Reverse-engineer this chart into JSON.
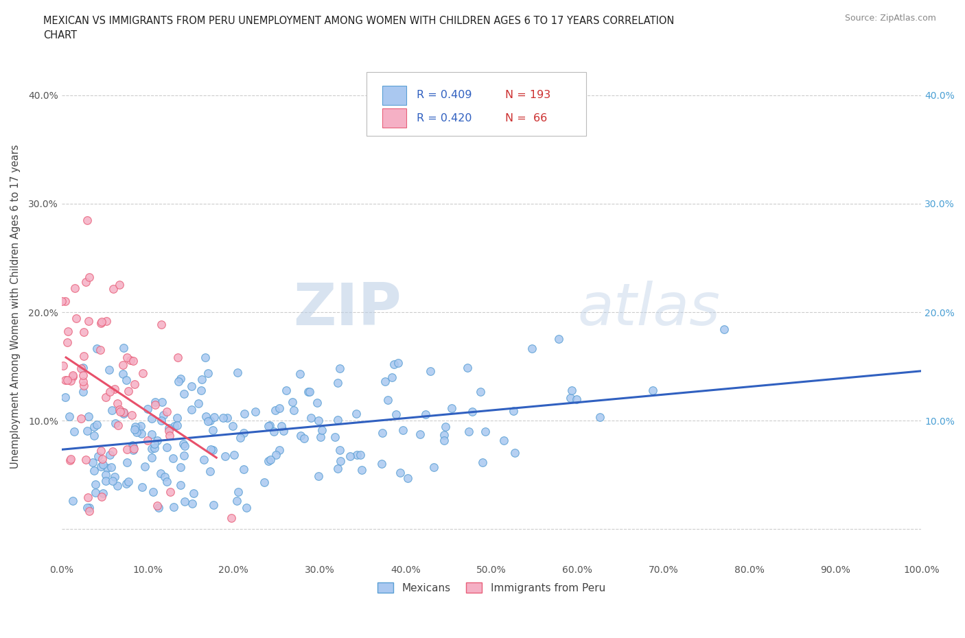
{
  "title": "MEXICAN VS IMMIGRANTS FROM PERU UNEMPLOYMENT AMONG WOMEN WITH CHILDREN AGES 6 TO 17 YEARS CORRELATION\nCHART",
  "source": "Source: ZipAtlas.com",
  "ylabel": "Unemployment Among Women with Children Ages 6 to 17 years",
  "xlim": [
    0,
    1.0
  ],
  "ylim": [
    -0.03,
    0.44
  ],
  "xticks": [
    0.0,
    0.1,
    0.2,
    0.3,
    0.4,
    0.5,
    0.6,
    0.7,
    0.8,
    0.9,
    1.0
  ],
  "xticklabels": [
    "0.0%",
    "10.0%",
    "20.0%",
    "30.0%",
    "40.0%",
    "50.0%",
    "60.0%",
    "70.0%",
    "80.0%",
    "90.0%",
    "100.0%"
  ],
  "yticks": [
    0.0,
    0.1,
    0.2,
    0.3,
    0.4
  ],
  "yticklabels_left": [
    "",
    "10.0%",
    "20.0%",
    "30.0%",
    "40.0%"
  ],
  "yticklabels_right": [
    "",
    "10.0%",
    "20.0%",
    "30.0%",
    "40.0%"
  ],
  "mexican_color": "#aac8f0",
  "mexican_edge_color": "#5a9fd4",
  "peru_color": "#f5b0c5",
  "peru_edge_color": "#e8607a",
  "mexican_line_color": "#3060c0",
  "peru_line_color": "#e8506a",
  "mexican_R": 0.409,
  "mexican_N": 193,
  "peru_R": 0.42,
  "peru_N": 66,
  "watermark_zip": "ZIP",
  "watermark_atlas": "atlas",
  "legend_label_mexican": "Mexicans",
  "legend_label_peru": "Immigrants from Peru"
}
